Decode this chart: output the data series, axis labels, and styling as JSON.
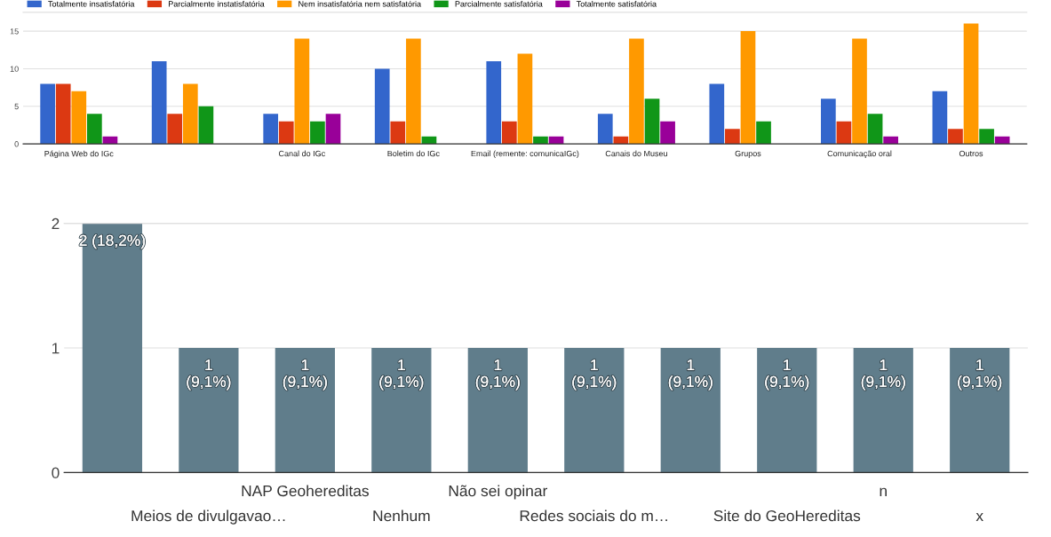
{
  "chart_data": [
    {
      "type": "bar",
      "categories": [
        "Página Web do IGc",
        null,
        "Canal do IGc",
        "Boletim do IGc",
        "Email (remente: comunicaIGc)",
        "Canais do Museu",
        "Grupos",
        "Comunicação oral",
        "Outros"
      ],
      "series": [
        {
          "name": "Totalmente insatisfatória",
          "color": "#3366cc",
          "values": [
            8,
            11,
            4,
            10,
            11,
            4,
            8,
            6,
            7
          ]
        },
        {
          "name": "Parcialmente instatisfatória",
          "color": "#dc3912",
          "values": [
            8,
            4,
            3,
            3,
            3,
            1,
            2,
            3,
            2
          ]
        },
        {
          "name": "Nem insatisfatória nem satisfatória",
          "color": "#ff9900",
          "values": [
            7,
            8,
            14,
            14,
            12,
            14,
            15,
            14,
            16
          ]
        },
        {
          "name": "Parcialmente satisfatória",
          "color": "#109618",
          "values": [
            4,
            5,
            3,
            1,
            1,
            6,
            3,
            4,
            2
          ]
        },
        {
          "name": "Totalmente satisfatória",
          "color": "#990099",
          "values": [
            1,
            0,
            4,
            0,
            1,
            3,
            0,
            1,
            1
          ]
        }
      ],
      "ylim": [
        0,
        17.5
      ],
      "yticks": [
        0,
        5,
        10,
        15
      ],
      "grid": "y",
      "legend": "top left"
    },
    {
      "type": "bar",
      "categories": [
        null,
        "Meios de divulgavao…",
        "NAP Geohereditas",
        "Nenhum",
        "Não sei opinar",
        "Redes sociais do m…",
        null,
        "Site do GeoHereditas",
        "n",
        "x"
      ],
      "values": [
        2,
        1,
        1,
        1,
        1,
        1,
        1,
        1,
        1,
        1
      ],
      "color": "#607d8b",
      "value_labels": [
        "2 (18,2%)",
        "1\n(9,1%)",
        "1\n(9,1%)",
        "1\n(9,1%)",
        "1\n(9,1%)",
        "1\n(9,1%)",
        "1\n(9,1%)",
        "1\n(9,1%)",
        "1\n(9,1%)",
        "1\n(9,1%)"
      ],
      "ylim": [
        0,
        2
      ],
      "yticks": [
        0,
        1,
        2
      ],
      "grid": "y"
    }
  ]
}
